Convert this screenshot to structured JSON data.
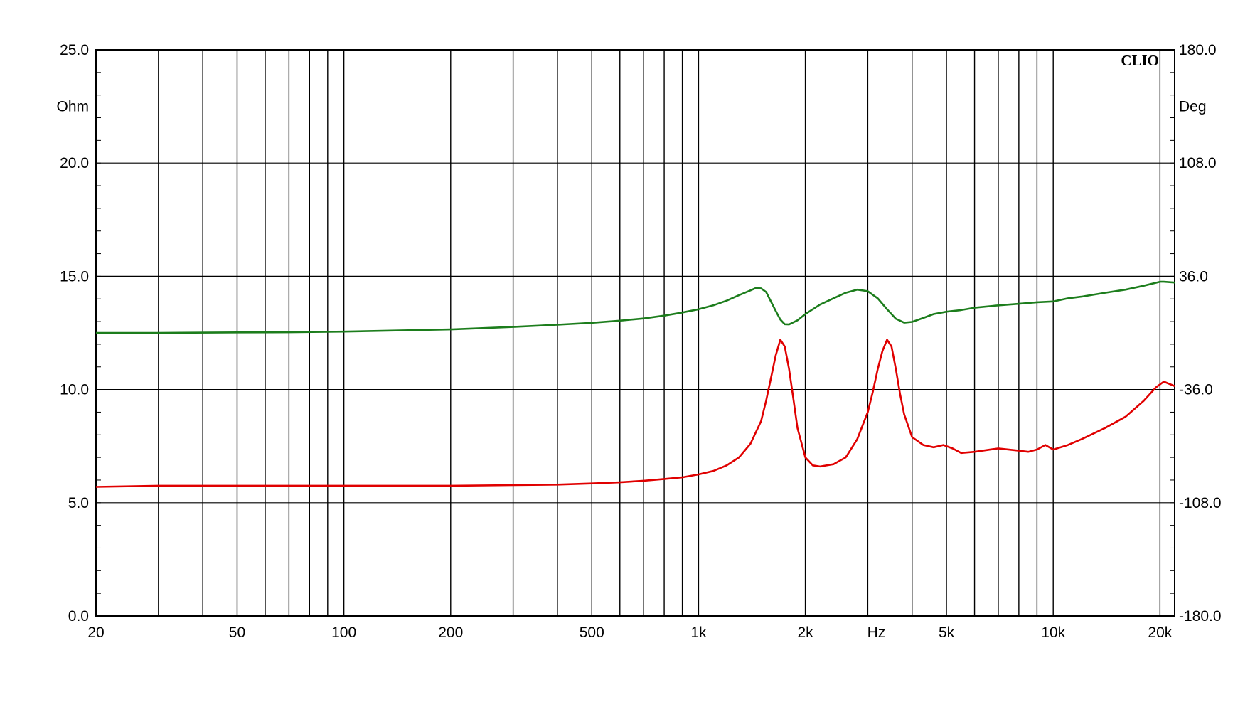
{
  "chart_data": {
    "type": "line",
    "brand_label": "CLIO",
    "x_scale": "log",
    "xlim": [
      20,
      22000
    ],
    "x_tick_labels": [
      {
        "value": 20,
        "label": "20"
      },
      {
        "value": 50,
        "label": "50"
      },
      {
        "value": 100,
        "label": "100"
      },
      {
        "value": 200,
        "label": "200"
      },
      {
        "value": 500,
        "label": "500"
      },
      {
        "value": 1000,
        "label": "1k"
      },
      {
        "value": 2000,
        "label": "2k"
      },
      {
        "value": 5000,
        "label": "5k"
      },
      {
        "value": 10000,
        "label": "10k"
      },
      {
        "value": 20000,
        "label": "20k"
      }
    ],
    "x_unit_label": {
      "value": 3000,
      "label": "Hz"
    },
    "x_gridlines": [
      20,
      30,
      40,
      50,
      60,
      70,
      80,
      90,
      100,
      200,
      300,
      400,
      500,
      600,
      700,
      800,
      900,
      1000,
      2000,
      3000,
      4000,
      5000,
      6000,
      7000,
      8000,
      9000,
      10000,
      20000
    ],
    "y_left": {
      "unit": "Ohm",
      "ylim": [
        0,
        25
      ],
      "ticks": [
        {
          "value": 0,
          "label": "0.0"
        },
        {
          "value": 5,
          "label": "5.0"
        },
        {
          "value": 10,
          "label": "10.0"
        },
        {
          "value": 15,
          "label": "15.0"
        },
        {
          "value": 20,
          "label": "20.0"
        },
        {
          "value": 25,
          "label": "25.0"
        }
      ]
    },
    "y_right": {
      "unit": "Deg",
      "ylim": [
        -180,
        180
      ],
      "ticks": [
        {
          "value": 180,
          "label": "180.0"
        },
        {
          "value": 108,
          "label": "108.0"
        },
        {
          "value": 36,
          "label": "36.0"
        },
        {
          "value": -36,
          "label": "-36.0"
        },
        {
          "value": -108,
          "label": "-108.0"
        },
        {
          "value": -180,
          "label": "-180.0"
        }
      ]
    },
    "grid": true,
    "series": [
      {
        "color": "#e00000",
        "axis": "left",
        "points": [
          [
            20,
            5.7
          ],
          [
            30,
            5.75
          ],
          [
            50,
            5.75
          ],
          [
            100,
            5.75
          ],
          [
            200,
            5.75
          ],
          [
            300,
            5.78
          ],
          [
            400,
            5.8
          ],
          [
            500,
            5.85
          ],
          [
            600,
            5.9
          ],
          [
            700,
            5.97
          ],
          [
            800,
            6.05
          ],
          [
            900,
            6.12
          ],
          [
            1000,
            6.25
          ],
          [
            1100,
            6.4
          ],
          [
            1200,
            6.65
          ],
          [
            1300,
            7.0
          ],
          [
            1400,
            7.6
          ],
          [
            1500,
            8.6
          ],
          [
            1550,
            9.5
          ],
          [
            1600,
            10.5
          ],
          [
            1650,
            11.5
          ],
          [
            1700,
            12.2
          ],
          [
            1750,
            11.9
          ],
          [
            1800,
            10.9
          ],
          [
            1850,
            9.6
          ],
          [
            1900,
            8.3
          ],
          [
            2000,
            7.0
          ],
          [
            2100,
            6.65
          ],
          [
            2200,
            6.6
          ],
          [
            2400,
            6.7
          ],
          [
            2600,
            7.0
          ],
          [
            2800,
            7.8
          ],
          [
            3000,
            9.0
          ],
          [
            3100,
            9.9
          ],
          [
            3200,
            10.9
          ],
          [
            3300,
            11.7
          ],
          [
            3400,
            12.2
          ],
          [
            3500,
            11.9
          ],
          [
            3600,
            10.9
          ],
          [
            3700,
            9.8
          ],
          [
            3800,
            8.9
          ],
          [
            4000,
            7.9
          ],
          [
            4300,
            7.55
          ],
          [
            4600,
            7.45
          ],
          [
            4900,
            7.55
          ],
          [
            5200,
            7.4
          ],
          [
            5500,
            7.2
          ],
          [
            6000,
            7.25
          ],
          [
            7000,
            7.4
          ],
          [
            8000,
            7.3
          ],
          [
            8500,
            7.25
          ],
          [
            9000,
            7.35
          ],
          [
            9500,
            7.55
          ],
          [
            10000,
            7.35
          ],
          [
            11000,
            7.55
          ],
          [
            12000,
            7.8
          ],
          [
            14000,
            8.3
          ],
          [
            16000,
            8.8
          ],
          [
            18000,
            9.5
          ],
          [
            19500,
            10.1
          ],
          [
            20500,
            10.35
          ],
          [
            22000,
            10.15
          ]
        ]
      },
      {
        "color": "#1c7d1c",
        "axis": "right",
        "points": [
          [
            20,
            0
          ],
          [
            30,
            0
          ],
          [
            50,
            0.3
          ],
          [
            70,
            0.4
          ],
          [
            100,
            0.8
          ],
          [
            200,
            2.2
          ],
          [
            300,
            3.8
          ],
          [
            400,
            5.2
          ],
          [
            500,
            6.4
          ],
          [
            600,
            7.8
          ],
          [
            700,
            9.2
          ],
          [
            800,
            11
          ],
          [
            900,
            13
          ],
          [
            1000,
            15
          ],
          [
            1100,
            17.5
          ],
          [
            1200,
            20.5
          ],
          [
            1300,
            24
          ],
          [
            1400,
            27
          ],
          [
            1450,
            28.5
          ],
          [
            1500,
            28.3
          ],
          [
            1550,
            26
          ],
          [
            1600,
            20
          ],
          [
            1650,
            14
          ],
          [
            1700,
            8.5
          ],
          [
            1750,
            5.5
          ],
          [
            1800,
            5.4
          ],
          [
            1900,
            8
          ],
          [
            2000,
            12
          ],
          [
            2200,
            18
          ],
          [
            2400,
            22
          ],
          [
            2600,
            25.5
          ],
          [
            2800,
            27.5
          ],
          [
            3000,
            26.5
          ],
          [
            3200,
            22
          ],
          [
            3400,
            15
          ],
          [
            3600,
            9
          ],
          [
            3800,
            6.5
          ],
          [
            4000,
            7
          ],
          [
            4300,
            9.5
          ],
          [
            4600,
            12
          ],
          [
            5000,
            13.5
          ],
          [
            5500,
            14.5
          ],
          [
            6000,
            16
          ],
          [
            7000,
            17.5
          ],
          [
            8000,
            18.5
          ],
          [
            9000,
            19.5
          ],
          [
            10000,
            20
          ],
          [
            11000,
            22
          ],
          [
            12000,
            23
          ],
          [
            14000,
            25.5
          ],
          [
            16000,
            27.5
          ],
          [
            18000,
            30
          ],
          [
            20000,
            32.5
          ],
          [
            20500,
            32.5
          ],
          [
            22000,
            32
          ]
        ]
      }
    ]
  }
}
